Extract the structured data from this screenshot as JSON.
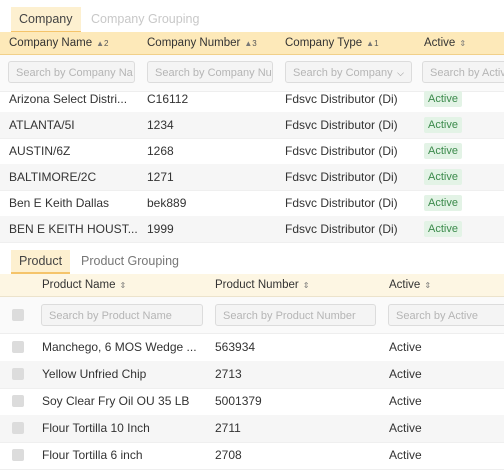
{
  "company_tabs": [
    "Company",
    "Company Grouping"
  ],
  "company_headers": {
    "name": "Company Name",
    "name_sort": "▲",
    "name_num": "2",
    "number": "Company Number",
    "number_sort": "▲",
    "number_num": "3",
    "type": "Company Type",
    "type_sort": "▲",
    "type_num": "1",
    "active": "Active",
    "active_sort": "⇕"
  },
  "company_filters": {
    "name": "Search by Company Na",
    "number": "Search by Company Nu",
    "type": "Search by Company",
    "active": "Search by Activ"
  },
  "company_rows": [
    {
      "name": "Arizona Select Distri...",
      "number": "C16112",
      "type": "Fdsvc Distributor (Di)",
      "active": "Active"
    },
    {
      "name": "ATLANTA/5I",
      "number": "1234",
      "type": "Fdsvc Distributor (Di)",
      "active": "Active"
    },
    {
      "name": "AUSTIN/6Z",
      "number": "1268",
      "type": "Fdsvc Distributor (Di)",
      "active": "Active"
    },
    {
      "name": "BALTIMORE/2C",
      "number": "1271",
      "type": "Fdsvc Distributor (Di)",
      "active": "Active"
    },
    {
      "name": "Ben E Keith Dallas",
      "number": "bek889",
      "type": "Fdsvc Distributor (Di)",
      "active": "Active"
    },
    {
      "name": "BEN E KEITH HOUST...",
      "number": "1999",
      "type": "Fdsvc Distributor (Di)",
      "active": "Active"
    }
  ],
  "product_tabs": [
    "Product",
    "Product Grouping"
  ],
  "product_headers": {
    "name": "Product Name",
    "name_sort": "⇕",
    "number": "Product Number",
    "number_sort": "⇕",
    "active": "Active",
    "active_sort": "⇕"
  },
  "product_filters": {
    "name": "Search by Product Name",
    "number": "Search by Product Number",
    "active": "Search by Active"
  },
  "product_rows": [
    {
      "name": "Manchego, 6 MOS Wedge ...",
      "number": "563934",
      "active": "Active"
    },
    {
      "name": "Yellow Unfried Chip",
      "number": "2713",
      "active": "Active"
    },
    {
      "name": "Soy Clear Fry Oil OU 35 LB",
      "number": "5001379",
      "active": "Active"
    },
    {
      "name": "Flour Tortilla 10 Inch",
      "number": "2711",
      "active": "Active"
    },
    {
      "name": "Flour Tortilla 6 inch",
      "number": "2708",
      "active": "Active"
    }
  ]
}
